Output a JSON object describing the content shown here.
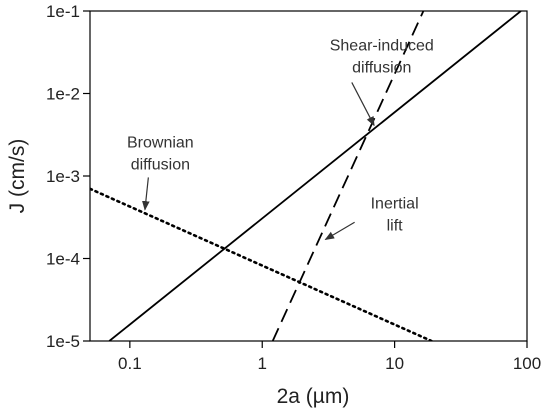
{
  "chart_data": {
    "type": "line",
    "title": "",
    "xlabel": "2a (µm)",
    "ylabel": "J (cm/s)",
    "xscale": "log",
    "yscale": "log",
    "xlim": [
      0.05,
      100
    ],
    "ylim": [
      1e-05,
      0.1
    ],
    "grid": false,
    "legend": "none",
    "x_ticks": [
      {
        "value": 0.1,
        "label": "0.1"
      },
      {
        "value": 1,
        "label": "1"
      },
      {
        "value": 10,
        "label": "10"
      },
      {
        "value": 100,
        "label": "100"
      }
    ],
    "y_ticks": [
      {
        "value": 1e-05,
        "label": "1e-5"
      },
      {
        "value": 0.0001,
        "label": "1e-4"
      },
      {
        "value": 0.001,
        "label": "1e-3"
      },
      {
        "value": 0.01,
        "label": "1e-2"
      },
      {
        "value": 0.1,
        "label": "1e-1"
      }
    ],
    "series": [
      {
        "key": "shear",
        "style": "solid",
        "color": "#000000",
        "x": [
          0.07,
          90
        ],
        "y": [
          1e-05,
          0.1
        ]
      },
      {
        "key": "brownian",
        "style": "dotted",
        "color": "#000000",
        "x": [
          0.05,
          19
        ],
        "y": [
          0.0007,
          1e-05
        ]
      },
      {
        "key": "inertial",
        "style": "dashed",
        "color": "#000000",
        "x": [
          1.2,
          16.5
        ],
        "y": [
          1e-05,
          0.1
        ]
      }
    ],
    "annotations": [
      {
        "key": "shear",
        "lines": [
          "Shear-induced",
          "diffusion"
        ],
        "text_at": [
          8,
          0.018
        ],
        "arrow_to": [
          7,
          0.0041
        ]
      },
      {
        "key": "brownian",
        "lines": [
          "Brownian",
          "diffusion"
        ],
        "text_at": [
          0.17,
          0.0012
        ],
        "arrow_to": [
          0.13,
          0.00039
        ]
      },
      {
        "key": "inertial",
        "lines": [
          "Inertial",
          "lift"
        ],
        "text_at": [
          10,
          0.00022
        ],
        "arrow_to": [
          3,
          0.00017
        ]
      }
    ]
  }
}
